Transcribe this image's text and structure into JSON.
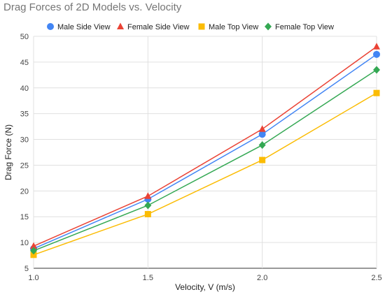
{
  "chart_data": {
    "type": "line",
    "title": "Drag Forces of 2D Models vs. Velocity",
    "xlabel": "Velocity, V (m/s)",
    "ylabel": "Drag Force (N)",
    "x": [
      1.0,
      1.5,
      2.0,
      2.5
    ],
    "x_tick_labels": [
      "1.0",
      "1.5",
      "2.0",
      "2.5"
    ],
    "xlim": [
      1.0,
      2.5
    ],
    "ylim": [
      5,
      50
    ],
    "y_ticks": [
      5,
      10,
      15,
      20,
      25,
      30,
      35,
      40,
      45,
      50
    ],
    "grid": true,
    "legend_position": "top",
    "series": [
      {
        "name": "Male Side View",
        "marker": "circle",
        "color": "#4285F4",
        "values": [
          8.8,
          18.4,
          31.0,
          46.5
        ]
      },
      {
        "name": "Female Side View",
        "marker": "triangle",
        "color": "#EA4335",
        "values": [
          9.3,
          19.0,
          32.0,
          48.0
        ]
      },
      {
        "name": "Male Top View",
        "marker": "square",
        "color": "#FBBC04",
        "values": [
          7.6,
          15.5,
          26.0,
          39.0
        ]
      },
      {
        "name": "Female Top View",
        "marker": "diamond",
        "color": "#34A853",
        "values": [
          8.4,
          17.2,
          28.9,
          43.5
        ]
      }
    ]
  }
}
